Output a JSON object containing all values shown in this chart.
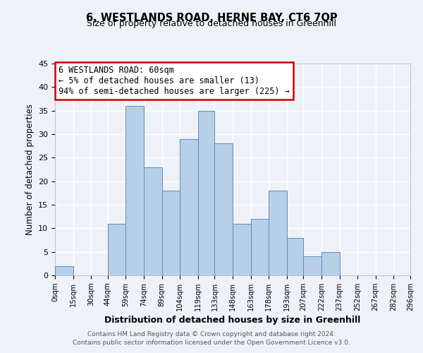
{
  "title": "6, WESTLANDS ROAD, HERNE BAY, CT6 7QP",
  "subtitle": "Size of property relative to detached houses in Greenhill",
  "xlabel": "Distribution of detached houses by size in Greenhill",
  "ylabel": "Number of detached properties",
  "bar_color": "#b8cfe8",
  "bar_edge_color": "#5b8db8",
  "background_color": "#eef2f8",
  "grid_color": "#ffffff",
  "bins": [
    0,
    15,
    30,
    44,
    59,
    74,
    89,
    104,
    119,
    133,
    148,
    163,
    178,
    193,
    207,
    222,
    237,
    252,
    267,
    282,
    296
  ],
  "bin_labels": [
    "0sqm",
    "15sqm",
    "30sqm",
    "44sqm",
    "59sqm",
    "74sqm",
    "89sqm",
    "104sqm",
    "119sqm",
    "133sqm",
    "148sqm",
    "163sqm",
    "178sqm",
    "193sqm",
    "207sqm",
    "222sqm",
    "237sqm",
    "252sqm",
    "267sqm",
    "282sqm",
    "296sqm"
  ],
  "counts": [
    2,
    0,
    0,
    11,
    36,
    23,
    18,
    29,
    35,
    28,
    11,
    12,
    18,
    8,
    4,
    5,
    0,
    0,
    0,
    0
  ],
  "ylim": [
    0,
    45
  ],
  "yticks": [
    0,
    5,
    10,
    15,
    20,
    25,
    30,
    35,
    40,
    45
  ],
  "annotation_line1": "6 WESTLANDS ROAD: 60sqm",
  "annotation_line2": "← 5% of detached houses are smaller (13)",
  "annotation_line3": "94% of semi-detached houses are larger (225) →",
  "annotation_box_color": "#ffffff",
  "annotation_border_color": "#cc0000",
  "footnote1": "Contains HM Land Registry data © Crown copyright and database right 2024.",
  "footnote2": "Contains public sector information licensed under the Open Government Licence v3.0."
}
